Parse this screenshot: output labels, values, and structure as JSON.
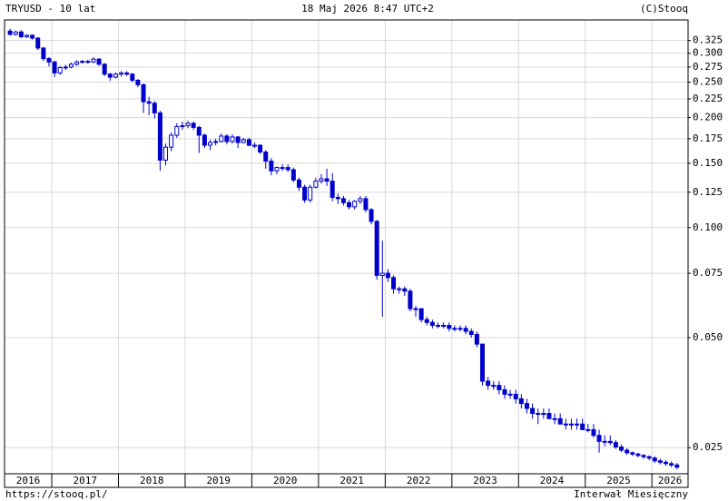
{
  "chart_data": {
    "type": "candlestick",
    "title": "TRYUSD - 10 lat",
    "date": "18 Maj 2026 8:47 UTC+2",
    "copyright": "(C)Stooq",
    "source_url": "https://stooq.pl/",
    "interval": "Interwał Miesięczny",
    "log_scale": true,
    "grid": true,
    "color": "#0000cc",
    "ylim": [
      0.0212,
      0.37
    ],
    "yticks": [
      0.325,
      {
        "value": 0.3,
        "label": "0.300"
      },
      0.275,
      {
        "value": 0.25,
        "label": "0.250"
      },
      0.225,
      {
        "value": 0.2,
        "label": "0.200"
      },
      0.175,
      {
        "value": 0.15,
        "label": "0.150"
      },
      0.125,
      {
        "value": 0.1,
        "label": "0.100"
      },
      0.075,
      {
        "value": 0.05,
        "label": "0.050"
      },
      0.025
    ],
    "x": [
      "2016",
      "2016",
      "2016",
      "2016",
      "2016",
      "2016",
      "2016",
      "2016",
      "2017",
      "2017",
      "2017",
      "2017",
      "2017",
      "2017",
      "2017",
      "2017",
      "2017",
      "2017",
      "2017",
      "2017",
      "2018",
      "2018",
      "2018",
      "2018",
      "2018",
      "2018",
      "2018",
      "2018",
      "2018",
      "2018",
      "2018",
      "2018",
      "2019",
      "2019",
      "2019",
      "2019",
      "2019",
      "2019",
      "2019",
      "2019",
      "2019",
      "2019",
      "2019",
      "2019",
      "2020",
      "2020",
      "2020",
      "2020",
      "2020",
      "2020",
      "2020",
      "2020",
      "2020",
      "2020",
      "2020",
      "2020",
      "2021",
      "2021",
      "2021",
      "2021",
      "2021",
      "2021",
      "2021",
      "2021",
      "2021",
      "2021",
      "2021",
      "2021",
      "2022",
      "2022",
      "2022",
      "2022",
      "2022",
      "2022",
      "2022",
      "2022",
      "2022",
      "2022",
      "2022",
      "2022",
      "2023",
      "2023",
      "2023",
      "2023",
      "2023",
      "2023",
      "2023",
      "2023",
      "2023",
      "2023",
      "2023",
      "2023",
      "2024",
      "2024",
      "2024",
      "2024",
      "2024",
      "2024",
      "2024",
      "2024",
      "2024",
      "2024",
      "2024",
      "2024",
      "2025",
      "2025",
      "2025",
      "2025",
      "2025",
      "2025",
      "2025",
      "2025",
      "2025",
      "2025",
      "2025",
      "2025",
      "2026",
      "2026",
      "2026",
      "2026",
      "2026"
    ],
    "open": [
      0.345,
      0.338,
      0.343,
      0.333,
      0.336,
      0.33,
      0.31,
      0.29,
      0.284,
      0.265,
      0.274,
      0.275,
      0.28,
      0.284,
      0.285,
      0.284,
      0.289,
      0.28,
      0.263,
      0.258,
      0.263,
      0.265,
      0.263,
      0.253,
      0.246,
      0.221,
      0.219,
      0.206,
      0.153,
      0.166,
      0.179,
      0.189,
      0.19,
      0.193,
      0.188,
      0.179,
      0.168,
      0.171,
      0.172,
      0.178,
      0.172,
      0.177,
      0.171,
      0.174,
      0.168,
      0.168,
      0.161,
      0.152,
      0.143,
      0.146,
      0.146,
      0.144,
      0.135,
      0.129,
      0.119,
      0.129,
      0.134,
      0.136,
      0.134,
      0.121,
      0.12,
      0.117,
      0.114,
      0.118,
      0.12,
      0.112,
      0.104,
      0.074,
      0.075,
      0.073,
      0.068,
      0.068,
      0.067,
      0.06,
      0.06,
      0.056,
      0.055,
      0.054,
      0.054,
      0.054,
      0.053,
      0.053,
      0.053,
      0.052,
      0.051,
      0.048,
      0.038,
      0.037,
      0.037,
      0.036,
      0.035,
      0.035,
      0.034,
      0.033,
      0.032,
      0.031,
      0.031,
      0.031,
      0.03,
      0.03,
      0.029,
      0.029,
      0.029,
      0.029,
      0.028,
      0.028,
      0.027,
      0.026,
      0.026,
      0.0258,
      0.0251,
      0.0246,
      0.0242,
      0.024,
      0.0238,
      0.0236,
      0.0234,
      0.023,
      0.0228,
      0.0226,
      0.0224
    ],
    "high": [
      0.35,
      0.346,
      0.347,
      0.338,
      0.338,
      0.332,
      0.312,
      0.293,
      0.286,
      0.277,
      0.279,
      0.283,
      0.287,
      0.288,
      0.288,
      0.293,
      0.291,
      0.282,
      0.265,
      0.266,
      0.268,
      0.268,
      0.265,
      0.255,
      0.248,
      0.228,
      0.222,
      0.209,
      0.17,
      0.182,
      0.193,
      0.195,
      0.196,
      0.195,
      0.19,
      0.181,
      0.174,
      0.175,
      0.181,
      0.18,
      0.18,
      0.178,
      0.176,
      0.176,
      0.171,
      0.169,
      0.163,
      0.155,
      0.147,
      0.149,
      0.149,
      0.146,
      0.137,
      0.131,
      0.131,
      0.137,
      0.14,
      0.145,
      0.141,
      0.124,
      0.122,
      0.119,
      0.119,
      0.122,
      0.122,
      0.113,
      0.105,
      0.092,
      0.077,
      0.074,
      0.069,
      0.069,
      0.068,
      0.061,
      0.06,
      0.057,
      0.056,
      0.055,
      0.055,
      0.055,
      0.054,
      0.054,
      0.054,
      0.053,
      0.052,
      0.048,
      0.039,
      0.038,
      0.038,
      0.037,
      0.036,
      0.036,
      0.035,
      0.034,
      0.033,
      0.032,
      0.032,
      0.032,
      0.031,
      0.031,
      0.03,
      0.03,
      0.03,
      0.03,
      0.029,
      0.029,
      0.028,
      0.027,
      0.027,
      0.0262,
      0.0255,
      0.0249,
      0.0244,
      0.0242,
      0.024,
      0.0238,
      0.0237,
      0.0233,
      0.0231,
      0.0229,
      0.0227
    ],
    "low": [
      0.335,
      0.335,
      0.33,
      0.33,
      0.327,
      0.306,
      0.286,
      0.276,
      0.258,
      0.262,
      0.27,
      0.273,
      0.277,
      0.281,
      0.281,
      0.282,
      0.277,
      0.26,
      0.252,
      0.256,
      0.259,
      0.26,
      0.25,
      0.242,
      0.206,
      0.203,
      0.199,
      0.143,
      0.148,
      0.162,
      0.176,
      0.185,
      0.187,
      0.185,
      0.16,
      0.165,
      0.163,
      0.168,
      0.171,
      0.169,
      0.17,
      0.165,
      0.17,
      0.167,
      0.165,
      0.159,
      0.145,
      0.139,
      0.14,
      0.143,
      0.142,
      0.133,
      0.126,
      0.117,
      0.117,
      0.128,
      0.132,
      0.13,
      0.118,
      0.116,
      0.115,
      0.112,
      0.112,
      0.116,
      0.11,
      0.102,
      0.072,
      0.057,
      0.071,
      0.066,
      0.066,
      0.065,
      0.059,
      0.057,
      0.055,
      0.054,
      0.053,
      0.053,
      0.053,
      0.052,
      0.052,
      0.052,
      0.051,
      0.05,
      0.047,
      0.037,
      0.036,
      0.036,
      0.035,
      0.034,
      0.034,
      0.033,
      0.032,
      0.031,
      0.03,
      0.029,
      0.03,
      0.03,
      0.029,
      0.029,
      0.028,
      0.028,
      0.028,
      0.028,
      0.0275,
      0.0266,
      0.0242,
      0.0252,
      0.0254,
      0.0248,
      0.0243,
      0.0239,
      0.0237,
      0.0235,
      0.0233,
      0.0231,
      0.0227,
      0.0225,
      0.0223,
      0.0221,
      0.0218
    ],
    "close": [
      0.338,
      0.343,
      0.333,
      0.336,
      0.33,
      0.31,
      0.29,
      0.284,
      0.265,
      0.274,
      0.275,
      0.28,
      0.284,
      0.285,
      0.284,
      0.289,
      0.28,
      0.263,
      0.258,
      0.263,
      0.265,
      0.263,
      0.253,
      0.246,
      0.221,
      0.219,
      0.206,
      0.153,
      0.166,
      0.179,
      0.189,
      0.19,
      0.193,
      0.188,
      0.179,
      0.168,
      0.171,
      0.172,
      0.178,
      0.172,
      0.177,
      0.171,
      0.174,
      0.168,
      0.168,
      0.161,
      0.152,
      0.143,
      0.146,
      0.146,
      0.144,
      0.135,
      0.129,
      0.119,
      0.129,
      0.134,
      0.136,
      0.134,
      0.121,
      0.12,
      0.117,
      0.114,
      0.118,
      0.12,
      0.112,
      0.104,
      0.074,
      0.075,
      0.073,
      0.068,
      0.068,
      0.067,
      0.06,
      0.06,
      0.056,
      0.055,
      0.054,
      0.054,
      0.054,
      0.053,
      0.053,
      0.053,
      0.052,
      0.051,
      0.048,
      0.038,
      0.037,
      0.037,
      0.036,
      0.035,
      0.035,
      0.034,
      0.033,
      0.032,
      0.031,
      0.031,
      0.031,
      0.03,
      0.03,
      0.029,
      0.029,
      0.029,
      0.029,
      0.028,
      0.028,
      0.027,
      0.026,
      0.026,
      0.0258,
      0.0251,
      0.0246,
      0.0242,
      0.024,
      0.0238,
      0.0236,
      0.0234,
      0.023,
      0.0228,
      0.0226,
      0.0224,
      0.0221
    ]
  }
}
